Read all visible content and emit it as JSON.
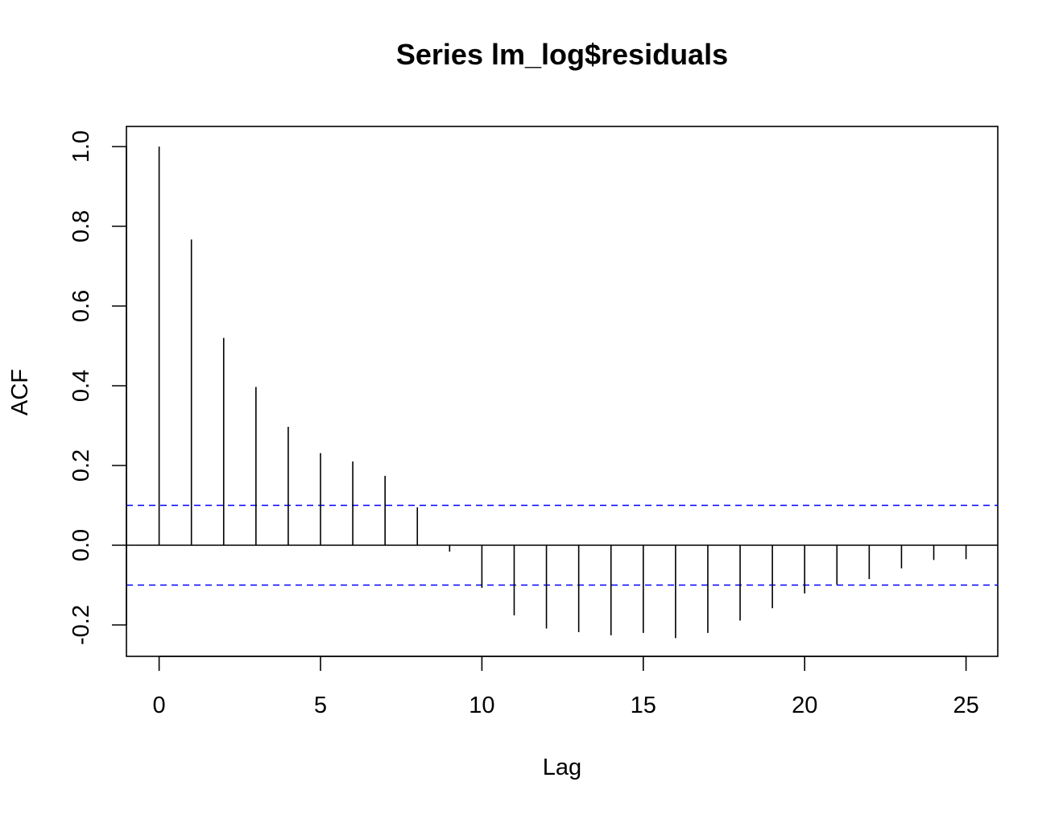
{
  "chart_data": {
    "type": "bar",
    "subtype": "acf",
    "title": "Series  lm_log$residuals",
    "xlabel": "Lag",
    "ylabel": "ACF",
    "xlim": [
      -1,
      26
    ],
    "ylim": [
      -0.28,
      1.05
    ],
    "xticks": [
      0,
      5,
      10,
      15,
      20,
      25
    ],
    "xtick_labels": [
      "0",
      "5",
      "10",
      "15",
      "20",
      "25"
    ],
    "yticks": [
      -0.2,
      0.0,
      0.2,
      0.4,
      0.6,
      0.8,
      1.0
    ],
    "ytick_labels": [
      "-0.2",
      "0.0",
      "0.2",
      "0.4",
      "0.6",
      "0.8",
      "1.0"
    ],
    "lags": [
      0,
      1,
      2,
      3,
      4,
      5,
      6,
      7,
      8,
      9,
      10,
      11,
      12,
      13,
      14,
      15,
      16,
      17,
      18,
      19,
      20,
      21,
      22,
      23,
      24,
      25
    ],
    "values": [
      1.0,
      0.767,
      0.52,
      0.397,
      0.297,
      0.231,
      0.21,
      0.174,
      0.095,
      -0.016,
      -0.107,
      -0.176,
      -0.209,
      -0.218,
      -0.226,
      -0.22,
      -0.233,
      -0.22,
      -0.189,
      -0.158,
      -0.121,
      -0.099,
      -0.085,
      -0.058,
      -0.037,
      -0.035
    ],
    "confidence_bound": 0.1,
    "colors": {
      "spike": "#000000",
      "confidence_line": "#0000ff",
      "zero_line": "#000000"
    },
    "grid": false,
    "legend": "none"
  }
}
